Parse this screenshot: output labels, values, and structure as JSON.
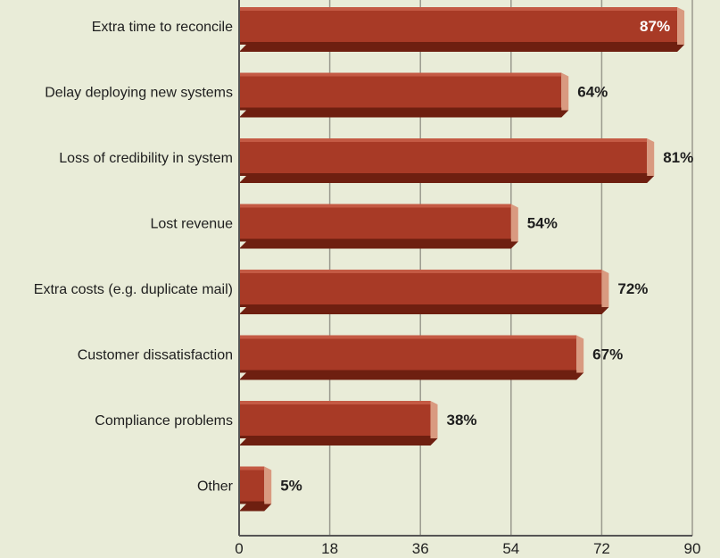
{
  "chart_data": {
    "type": "bar",
    "orientation": "horizontal",
    "categories": [
      "Extra time to reconcile",
      "Delay deploying new systems",
      "Loss of credibility in system",
      "Lost revenue",
      "Extra costs (e.g. duplicate mail)",
      "Customer dissatisfaction",
      "Compliance problems",
      "Other"
    ],
    "values": [
      87,
      64,
      81,
      54,
      72,
      67,
      38,
      5
    ],
    "value_labels": [
      "87%",
      "64%",
      "81%",
      "54%",
      "72%",
      "67%",
      "38%",
      "5%"
    ],
    "xlim": [
      0,
      90
    ],
    "xticks": [
      0,
      18,
      36,
      54,
      72,
      90
    ],
    "xtick_labels": [
      "0",
      "18",
      "36",
      "54",
      "72",
      "90"
    ],
    "grid": true,
    "title": "",
    "xlabel": "",
    "ylabel": "",
    "colors": {
      "background": "#e9ecd8",
      "bar_face": "#a83a26",
      "bar_top": "#c45a44",
      "bar_side": "#d99a80",
      "bar_shadow": "#6e1f10",
      "grid": "#9a9a8e",
      "axis": "#555555"
    }
  }
}
